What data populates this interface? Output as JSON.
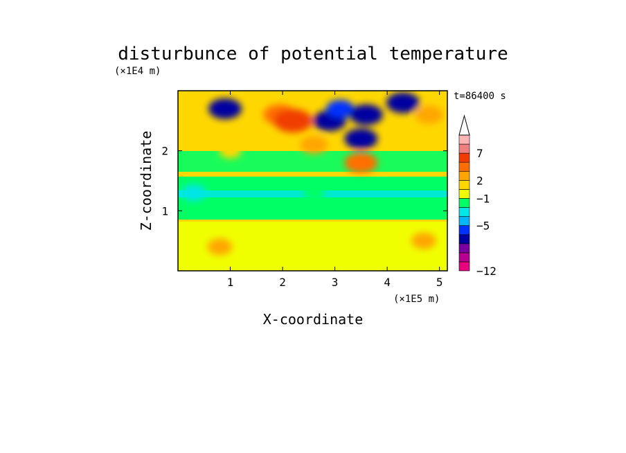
{
  "chart_data": {
    "type": "heatmap",
    "title": "disturbunce of potential temperature",
    "xlabel": "X-coordinate",
    "ylabel": "Z-coordinate",
    "x_unit": "(×1E5 m)",
    "y_unit": "(×1E4 m)",
    "time_label": "t=86400 s",
    "xlim": [
      0,
      5.15
    ],
    "ylim": [
      0,
      3.0
    ],
    "x_ticks": [
      1,
      2,
      3,
      4,
      5
    ],
    "y_ticks": [
      1,
      2
    ],
    "colorbar": {
      "tick_labels": [
        "7",
        "2",
        "−1",
        "−5",
        "−12"
      ],
      "tick_values": [
        7,
        2,
        -1,
        -5,
        -12
      ],
      "colors": [
        "#e6007e",
        "#b4008c",
        "#7800a0",
        "#0000a0",
        "#0032ff",
        "#00b4ff",
        "#00e6e6",
        "#00ff64",
        "#f0ff00",
        "#ffd700",
        "#ffa500",
        "#ff6e00",
        "#f03c00",
        "#f08080",
        "#ffb4b4"
      ],
      "extend": "max"
    },
    "grid": false,
    "field_features": [
      {
        "x": 0.9,
        "z": 2.7,
        "level": -5
      },
      {
        "x": 1.95,
        "z": 2.6,
        "level": 5
      },
      {
        "x": 2.2,
        "z": 2.5,
        "level": 7
      },
      {
        "x": 2.9,
        "z": 2.5,
        "level": -5
      },
      {
        "x": 3.1,
        "z": 2.7,
        "level": -3
      },
      {
        "x": 3.6,
        "z": 2.6,
        "level": -5
      },
      {
        "x": 4.3,
        "z": 2.8,
        "level": -5
      },
      {
        "x": 3.5,
        "z": 2.2,
        "level": -5
      },
      {
        "x": 3.5,
        "z": 1.8,
        "level": 5
      },
      {
        "x": 2.6,
        "z": 2.1,
        "level": 3
      },
      {
        "x": 4.8,
        "z": 2.6,
        "level": 3
      },
      {
        "x": 1.0,
        "z": 2.0,
        "level": 1
      },
      {
        "x": 2.6,
        "z": 1.3,
        "level": -1
      },
      {
        "x": 0.3,
        "z": 1.3,
        "level": -2
      },
      {
        "x": 0.8,
        "z": 0.4,
        "level": 2
      },
      {
        "x": 4.7,
        "z": 0.5,
        "level": 2
      }
    ]
  }
}
